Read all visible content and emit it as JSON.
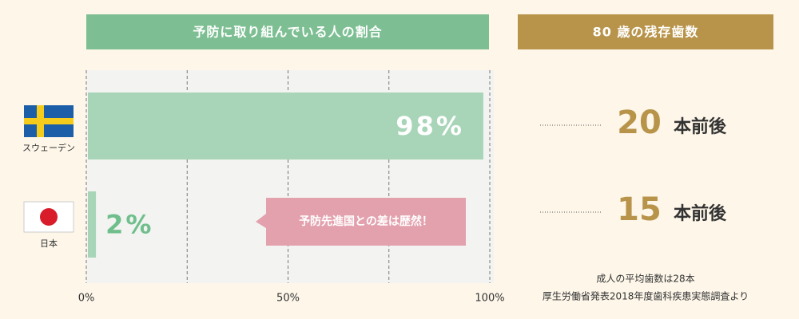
{
  "chart_data": {
    "type": "bar",
    "orientation": "horizontal",
    "title": "予防に取り組んでいる人の割合",
    "categories": [
      "スウェーデン",
      "日本"
    ],
    "values": [
      98,
      2
    ],
    "value_labels": [
      "98%",
      "2%"
    ],
    "color": "#a8d5b8",
    "xlim": [
      0,
      100
    ],
    "xticks": [
      {
        "value": 0,
        "label": "0%"
      },
      {
        "value": 25,
        "label": null
      },
      {
        "value": 50,
        "label": "50%"
      },
      {
        "value": 75,
        "label": null
      },
      {
        "value": 100,
        "label": "100%"
      }
    ],
    "grid": true,
    "annotation": "予防先進国との差は歴然！"
  },
  "side_panel": {
    "title": "80 歳の残存歯数",
    "rows": [
      {
        "value": 20,
        "unit": "本前後"
      },
      {
        "value": 15,
        "unit": "本前後"
      }
    ],
    "notes": [
      "成人の平均歯数は28本",
      "厚生労働省発表2018年度歯科疾患実態調査より"
    ]
  }
}
